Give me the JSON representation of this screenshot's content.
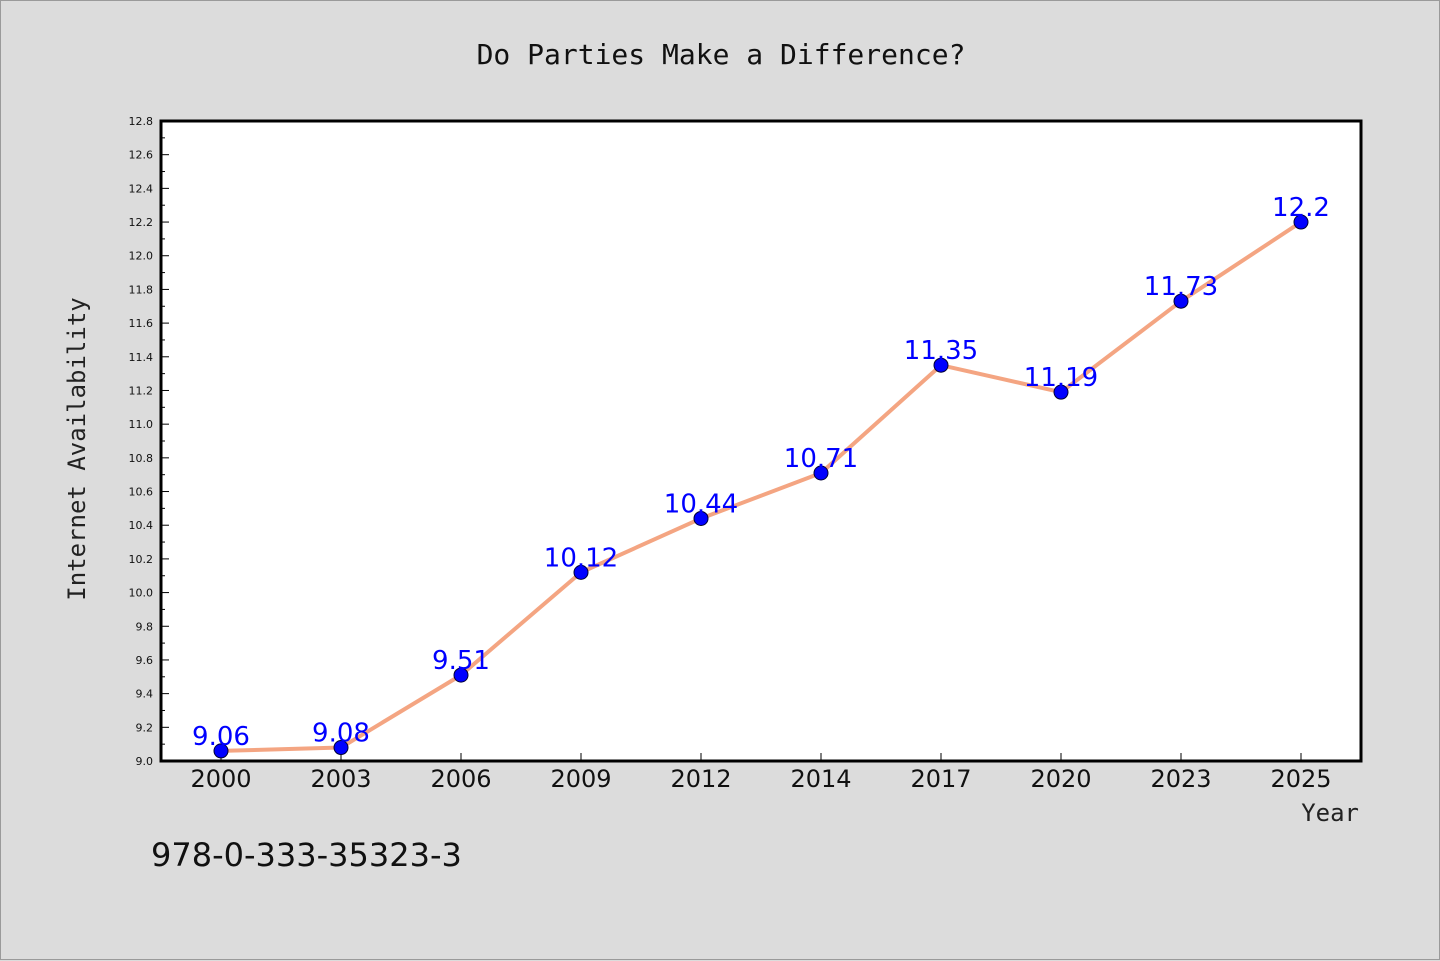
{
  "chart_data": {
    "type": "line",
    "title": "Do Parties Make a Difference?",
    "xlabel": "Year",
    "ylabel": "Internet Availability",
    "categories": [
      "2000",
      "2003",
      "2006",
      "2009",
      "2012",
      "2014",
      "2017",
      "2020",
      "2023",
      "2025"
    ],
    "series": [
      {
        "values": [
          9.06,
          9.08,
          9.51,
          10.12,
          10.44,
          10.71,
          11.35,
          11.19,
          11.73,
          12.2
        ],
        "data_labels": [
          "9.06",
          "9.08",
          "9.51",
          "10.12",
          "10.44",
          "10.71",
          "11.35",
          "11.19",
          "11.73",
          "12.2"
        ],
        "line_color": "#f4a582",
        "marker_color": "#0000ff"
      }
    ],
    "ylim": [
      9.0,
      12.8
    ],
    "y_ticks": [
      "9.0",
      "9.2",
      "9.4",
      "9.6",
      "9.8",
      "10.0",
      "10.2",
      "10.4",
      "10.6",
      "10.8",
      "11.0",
      "11.2",
      "11.4",
      "11.6",
      "11.8",
      "12.0",
      "12.2",
      "12.4",
      "12.6",
      "12.8"
    ],
    "grid": false,
    "legend": "none"
  },
  "footer_text": "978-0-333-35323-3",
  "colors": {
    "background": "#dcdcdc",
    "plot_background": "#ffffff",
    "label_color": "#0000ff"
  }
}
